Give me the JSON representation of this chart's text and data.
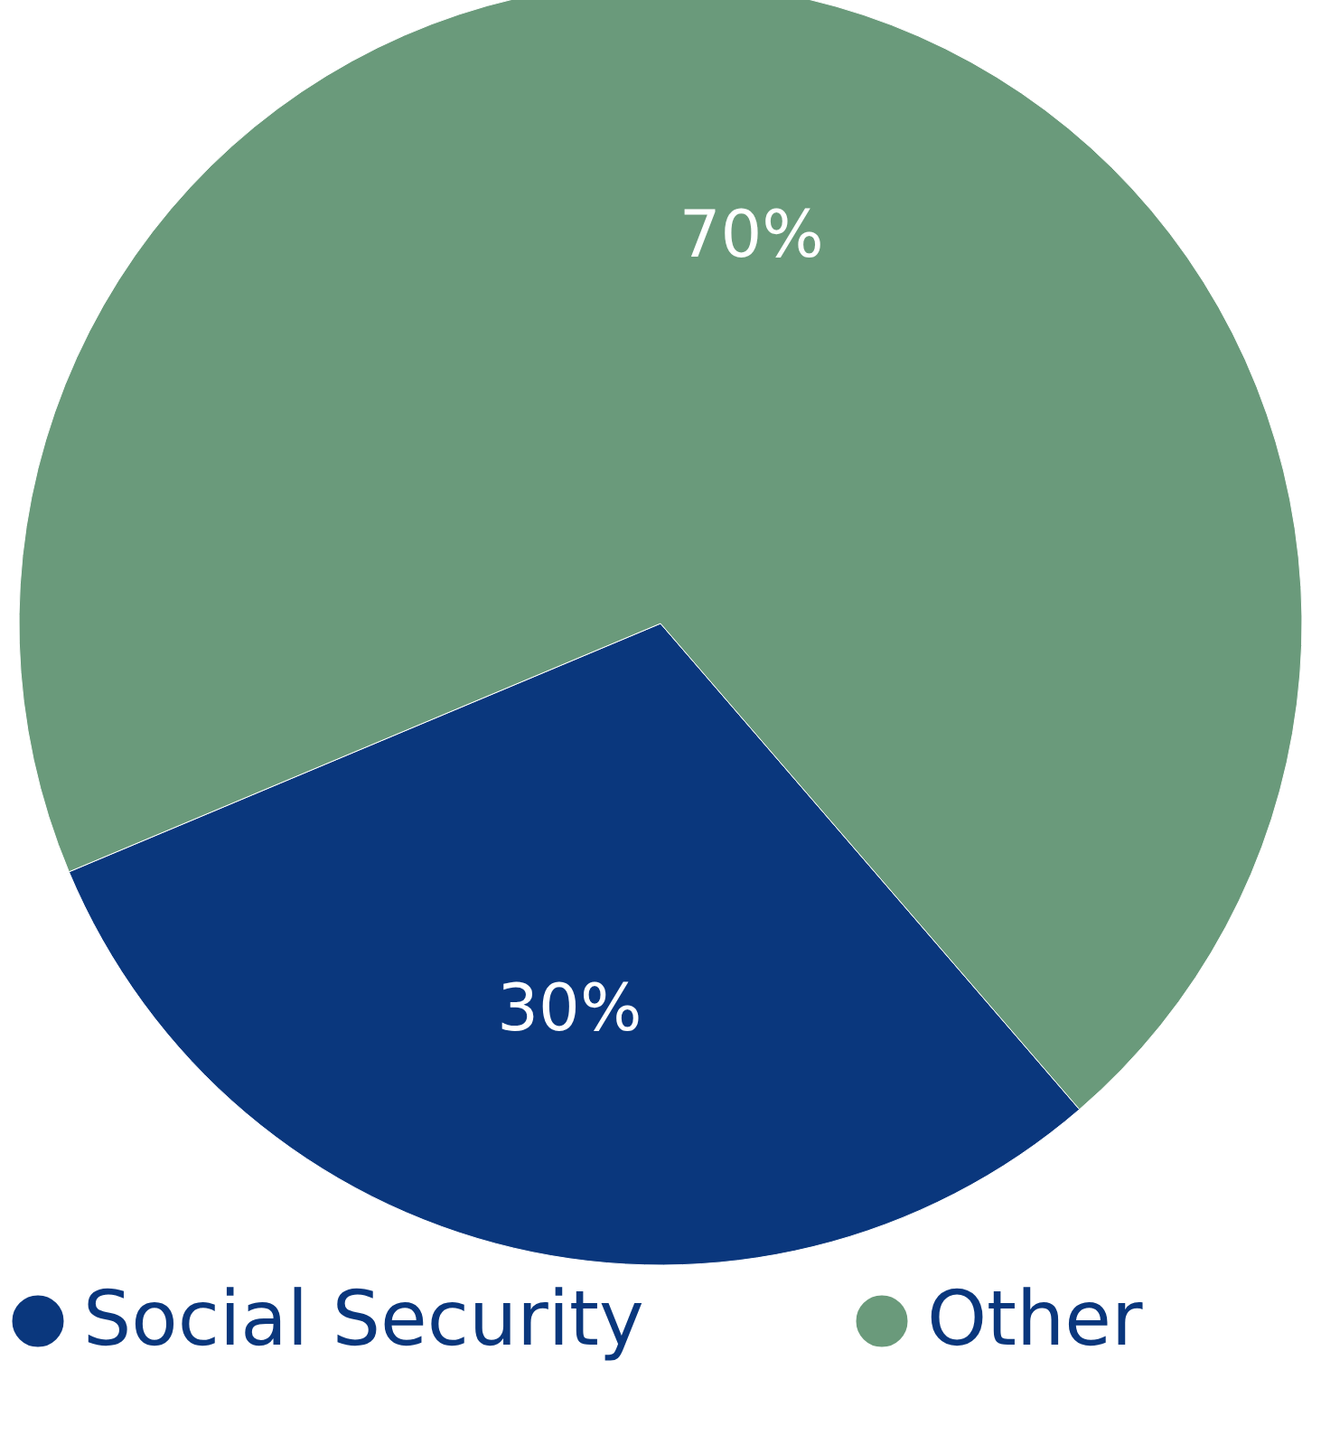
{
  "chart_data": {
    "type": "pie",
    "categories": [
      "Social Security",
      "Other"
    ],
    "values": [
      30,
      70
    ],
    "colors": [
      "#0a377d",
      "#6a9a7b"
    ],
    "value_labels": [
      "30%",
      "70%"
    ],
    "legend": "bottom"
  }
}
